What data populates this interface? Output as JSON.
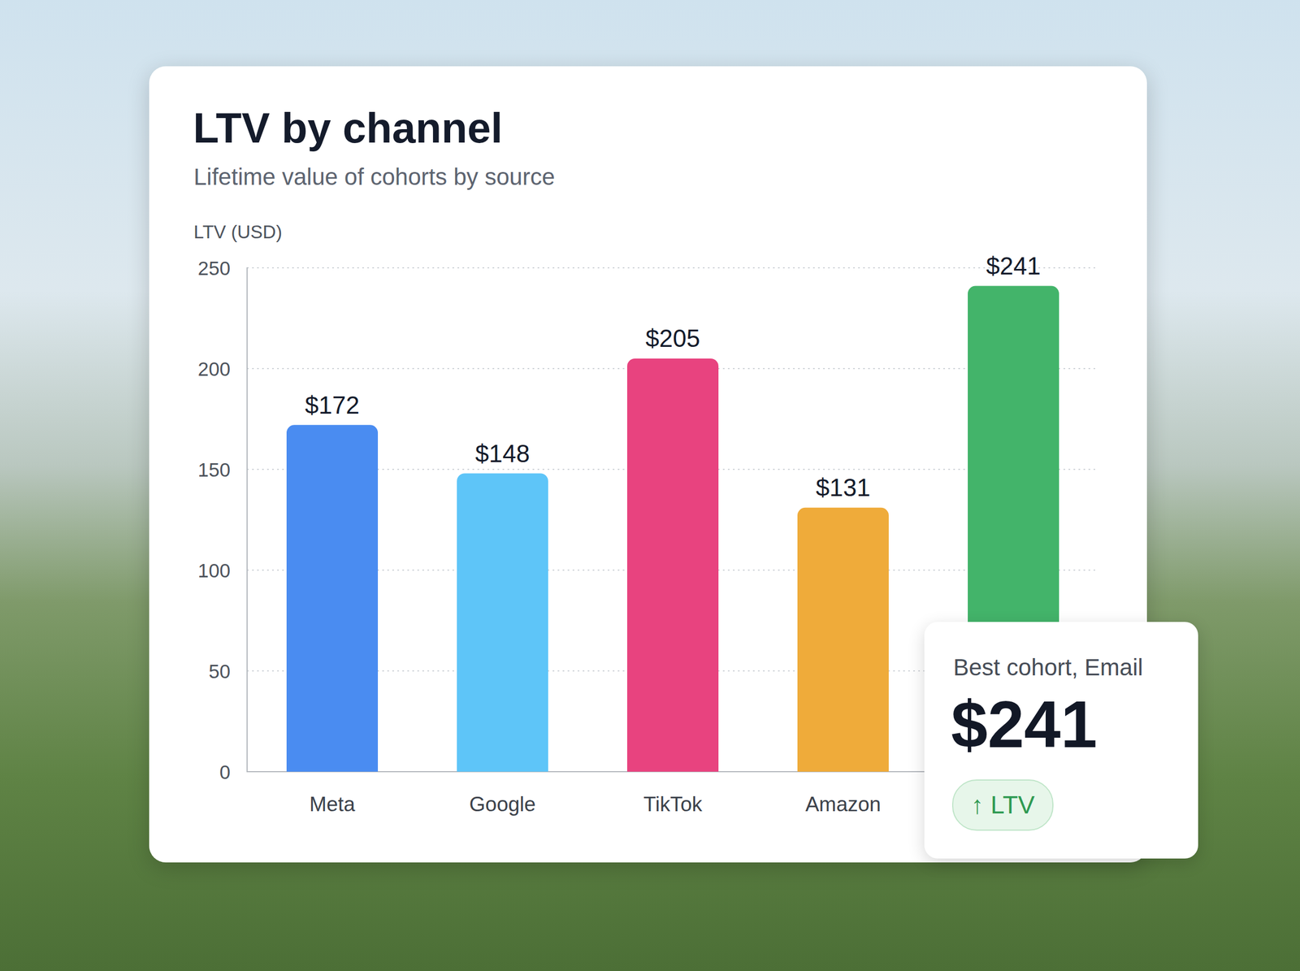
{
  "chart_data": {
    "type": "bar",
    "title": "LTV by channel",
    "subtitle": "Lifetime value of cohorts by source",
    "y_label": "LTV (USD)",
    "categories": [
      "Meta",
      "Google",
      "TikTok",
      "Amazon",
      null
    ],
    "values": [
      172,
      148,
      205,
      131,
      241
    ],
    "value_labels": [
      "$172",
      "$148",
      "$205",
      "$131",
      "$241"
    ],
    "colors": [
      "#4a8cf1",
      "#5ec5f8",
      "#e8437f",
      "#efab3a",
      "#43b46a"
    ],
    "ylim": [
      0,
      250
    ],
    "yticks": [
      0,
      50,
      100,
      150,
      200,
      250
    ],
    "grid": true,
    "data_labels": true,
    "annotation": {
      "label": "Best cohort, Email",
      "value": "$241",
      "badge": "↑ LTV"
    }
  }
}
